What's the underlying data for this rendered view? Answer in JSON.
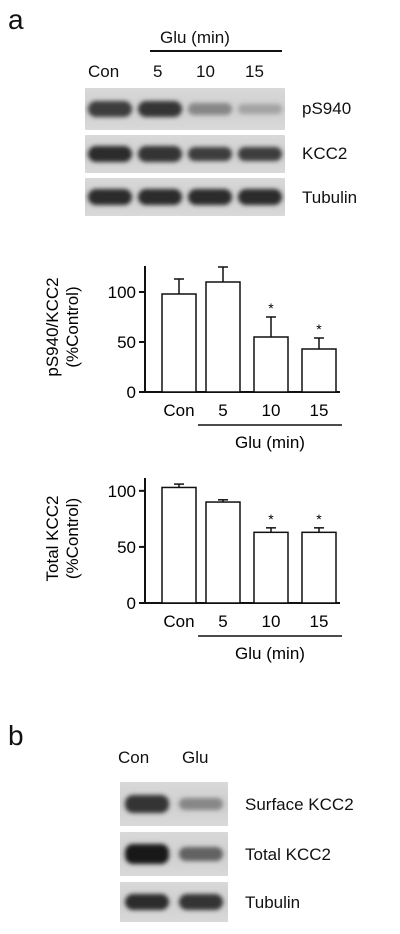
{
  "panels": {
    "a": "a",
    "b": "b"
  },
  "panel_a_blot": {
    "treatment_label": "Glu (min)",
    "lane_labels": [
      "Con",
      "5",
      "10",
      "15"
    ],
    "rows": [
      {
        "label": "pS940",
        "intensities": [
          0.75,
          0.8,
          0.35,
          0.2
        ]
      },
      {
        "label": "KCC2",
        "intensities": [
          0.85,
          0.8,
          0.75,
          0.75
        ]
      },
      {
        "label": "Tubulin",
        "intensities": [
          0.85,
          0.85,
          0.85,
          0.85
        ]
      }
    ]
  },
  "panel_b_blot": {
    "lane_labels": [
      "Con",
      "Glu"
    ],
    "rows": [
      {
        "label": "Surface KCC2",
        "intensities": [
          0.8,
          0.35
        ]
      },
      {
        "label": "Total KCC2",
        "intensities": [
          0.95,
          0.55
        ]
      },
      {
        "label": "Tubulin",
        "intensities": [
          0.85,
          0.8
        ]
      }
    ]
  },
  "chart_data": [
    {
      "type": "bar",
      "categories": [
        "Con",
        "5",
        "10",
        "15"
      ],
      "values": [
        98,
        110,
        55,
        43
      ],
      "errors": [
        15,
        15,
        20,
        11
      ],
      "significance": [
        "",
        "",
        "*",
        "*"
      ],
      "ylabel_lines": [
        "pS940/KCC2",
        "(%Control)"
      ],
      "ticks": [
        0,
        50,
        100
      ],
      "ylim": [
        0,
        130
      ],
      "group_label": "Glu (min)"
    },
    {
      "type": "bar",
      "categories": [
        "Con",
        "5",
        "10",
        "15"
      ],
      "values": [
        103,
        90,
        63,
        63
      ],
      "errors": [
        3,
        2,
        4,
        4
      ],
      "significance": [
        "",
        "",
        "*",
        "*"
      ],
      "ylabel_lines": [
        "Total KCC2",
        "(%Control)"
      ],
      "ticks": [
        0,
        50,
        100
      ],
      "ylim": [
        0,
        115
      ],
      "group_label": "Glu (min)"
    }
  ]
}
